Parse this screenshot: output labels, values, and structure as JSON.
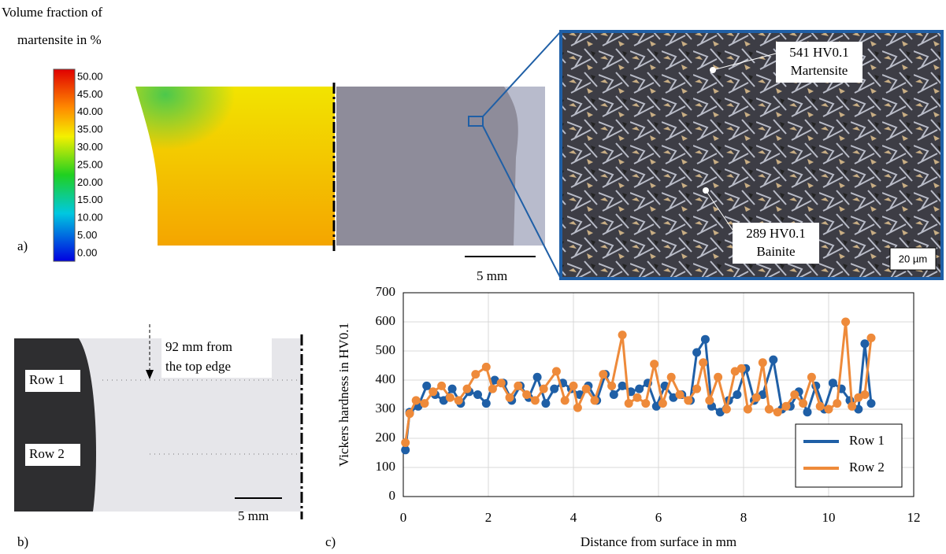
{
  "figure": {
    "colorbar_title": [
      "Volume fraction of",
      "martensite in %"
    ],
    "colorbar_ticks": [
      "50.00",
      "45.00",
      "40.00",
      "35.00",
      "30.00",
      "25.00",
      "20.00",
      "15.00",
      "10.00",
      "5.00",
      "0.00"
    ],
    "panel_a": "a)",
    "panel_b": "b)",
    "panel_c": "c)",
    "scale_a": "5 mm",
    "scale_b": "5 mm",
    "scale_inset": "20 µm",
    "martensite_hv": "541 HV0.1",
    "martensite": "Martensite",
    "bainite_hv": "289 HV0.1",
    "bainite": "Bainite",
    "position_note": [
      "92 mm from",
      "the top edge"
    ],
    "row1": "Row 1",
    "row2": "Row 2"
  },
  "chart_data": {
    "type": "line",
    "x_label": "Distance from surface in mm",
    "y_label": "Vickers  hardness in HV0.1",
    "xlim": [
      0,
      12
    ],
    "xticks": [
      0,
      2,
      4,
      6,
      8,
      10,
      12
    ],
    "ylim": [
      0,
      700
    ],
    "yticks": [
      0,
      100,
      200,
      300,
      400,
      500,
      600,
      700
    ],
    "grid": true,
    "legend": "lower right",
    "series": [
      {
        "name": "Row 1",
        "color": "#1f5fa6",
        "x": [
          0.05,
          0.15,
          0.35,
          0.55,
          0.75,
          0.95,
          1.15,
          1.35,
          1.55,
          1.75,
          1.95,
          2.15,
          2.35,
          2.55,
          2.75,
          2.95,
          3.15,
          3.35,
          3.55,
          3.75,
          3.95,
          4.15,
          4.35,
          4.55,
          4.75,
          4.95,
          5.15,
          5.35,
          5.55,
          5.75,
          5.95,
          6.15,
          6.35,
          6.55,
          6.75,
          6.9,
          7.1,
          7.25,
          7.45,
          7.65,
          7.85,
          8.05,
          8.25,
          8.45,
          8.7,
          8.9,
          9.1,
          9.3,
          9.5,
          9.7,
          9.9,
          10.1,
          10.3,
          10.5,
          10.7,
          10.85,
          11.0
        ],
        "values": [
          160,
          290,
          310,
          380,
          350,
          330,
          370,
          320,
          360,
          350,
          320,
          400,
          390,
          330,
          380,
          340,
          410,
          320,
          370,
          390,
          370,
          350,
          380,
          330,
          420,
          350,
          380,
          360,
          370,
          390,
          310,
          380,
          340,
          350,
          330,
          495,
          540,
          310,
          290,
          330,
          350,
          440,
          330,
          350,
          470,
          300,
          310,
          360,
          290,
          380,
          300,
          390,
          370,
          330,
          300,
          525,
          320
        ]
      },
      {
        "name": "Row 2",
        "color": "#ee8a3a",
        "x": [
          0.05,
          0.15,
          0.3,
          0.5,
          0.7,
          0.9,
          1.1,
          1.3,
          1.5,
          1.7,
          1.95,
          2.1,
          2.3,
          2.5,
          2.7,
          2.9,
          3.1,
          3.3,
          3.6,
          3.8,
          4.0,
          4.1,
          4.3,
          4.5,
          4.7,
          4.9,
          5.15,
          5.3,
          5.5,
          5.7,
          5.9,
          6.1,
          6.3,
          6.5,
          6.7,
          6.9,
          7.05,
          7.2,
          7.4,
          7.6,
          7.8,
          7.95,
          8.1,
          8.3,
          8.45,
          8.6,
          8.8,
          9.0,
          9.2,
          9.4,
          9.6,
          9.8,
          10.0,
          10.2,
          10.4,
          10.55,
          10.7,
          10.85,
          11.0
        ],
        "values": [
          185,
          285,
          330,
          320,
          360,
          380,
          340,
          330,
          370,
          420,
          445,
          370,
          390,
          340,
          380,
          350,
          330,
          370,
          430,
          330,
          380,
          305,
          370,
          330,
          420,
          380,
          555,
          320,
          340,
          320,
          455,
          320,
          410,
          350,
          330,
          370,
          460,
          330,
          410,
          300,
          430,
          440,
          300,
          340,
          460,
          300,
          290,
          310,
          350,
          320,
          410,
          310,
          300,
          320,
          600,
          310,
          340,
          350,
          545
        ]
      }
    ]
  }
}
